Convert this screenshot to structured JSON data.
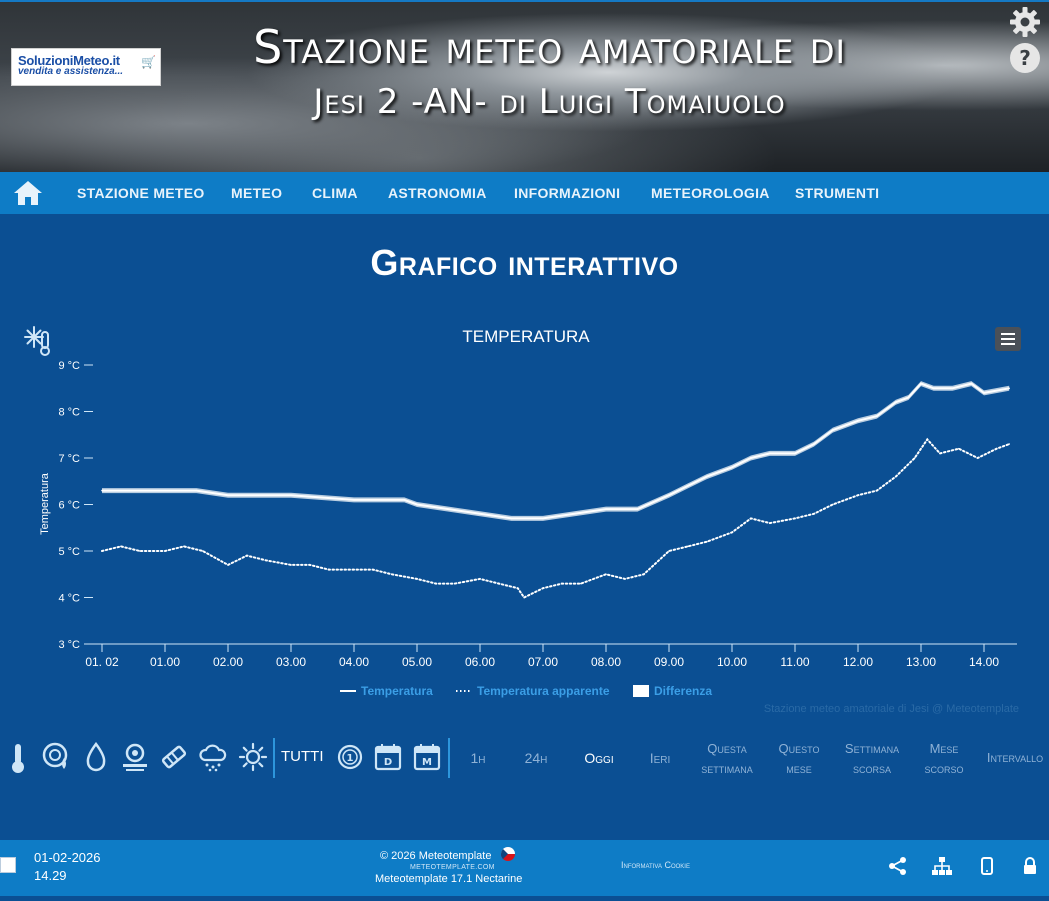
{
  "header": {
    "logo": {
      "brand": "SoluzioniMeteo.it",
      "tagline": "vendita e assistenza..."
    },
    "title_line1": "Stazione meteo amatoriale di",
    "title_line2": "Jesi 2 -AN- di Luigi Tomaiuolo",
    "icons": [
      "gear-icon",
      "help-icon"
    ]
  },
  "nav": {
    "home_icon": "home-icon",
    "items": [
      "STAZIONE METEO",
      "METEO",
      "CLIMA",
      "ASTRONOMIA",
      "INFORMAZIONI",
      "METEOROLOGIA",
      "STRUMENTI"
    ]
  },
  "page": {
    "title": "Grafico interattivo"
  },
  "chart_data": {
    "type": "line",
    "title": "TEMPERATURA",
    "ylabel": "Temperatura",
    "y_unit": "°C",
    "ylim": [
      3,
      9
    ],
    "y_ticks": [
      "3 °C",
      "4 °C",
      "5 °C",
      "6 °C",
      "7 °C",
      "8 °C",
      "9 °C"
    ],
    "x_ticks": [
      "01. 02",
      "01.00",
      "02.00",
      "03.00",
      "04.00",
      "05.00",
      "06.00",
      "07.00",
      "08.00",
      "09.00",
      "10.00",
      "11.00",
      "12.00",
      "13.00",
      "14.00"
    ],
    "grid": false,
    "legend_position": "bottom",
    "credits": "Stazione meteo amatoriale di Jesi @ Meteotemplate",
    "series": [
      {
        "name": "Temperatura",
        "style": "solid",
        "color": "#ffffff",
        "x": [
          0,
          1,
          1.5,
          2,
          3,
          4,
          4.8,
          5,
          5.5,
          6,
          6.5,
          7,
          7.5,
          8,
          8.5,
          9,
          9.3,
          9.6,
          10,
          10.3,
          10.6,
          11,
          11.3,
          11.6,
          12,
          12.3,
          12.6,
          12.8,
          13.0,
          13.2,
          13.5,
          13.8,
          14.0,
          14.4
        ],
        "values": [
          6.3,
          6.3,
          6.3,
          6.2,
          6.2,
          6.1,
          6.1,
          6.0,
          5.9,
          5.8,
          5.7,
          5.7,
          5.8,
          5.9,
          5.9,
          6.2,
          6.4,
          6.6,
          6.8,
          7.0,
          7.1,
          7.1,
          7.3,
          7.6,
          7.8,
          7.9,
          8.2,
          8.3,
          8.6,
          8.5,
          8.5,
          8.6,
          8.4,
          8.5
        ]
      },
      {
        "name": "Temperatura apparente",
        "style": "dotted",
        "color": "#ffffff",
        "x": [
          0,
          0.3,
          0.6,
          1,
          1.3,
          1.6,
          2,
          2.3,
          2.6,
          3,
          3.3,
          3.6,
          4,
          4.3,
          4.6,
          5,
          5.3,
          5.6,
          6,
          6.3,
          6.6,
          6.7,
          7,
          7.3,
          7.6,
          8,
          8.3,
          8.6,
          9,
          9.3,
          9.6,
          10,
          10.3,
          10.6,
          11,
          11.3,
          11.6,
          12,
          12.3,
          12.6,
          12.9,
          13.1,
          13.3,
          13.6,
          13.9,
          14.2,
          14.4
        ],
        "values": [
          5.0,
          5.1,
          5.0,
          5.0,
          5.1,
          5.0,
          4.7,
          4.9,
          4.8,
          4.7,
          4.7,
          4.6,
          4.6,
          4.6,
          4.5,
          4.4,
          4.3,
          4.3,
          4.4,
          4.3,
          4.2,
          4.0,
          4.2,
          4.3,
          4.3,
          4.5,
          4.4,
          4.5,
          5.0,
          5.1,
          5.2,
          5.4,
          5.7,
          5.6,
          5.7,
          5.8,
          6.0,
          6.2,
          6.3,
          6.6,
          7.0,
          7.4,
          7.1,
          7.2,
          7.0,
          7.2,
          7.3
        ]
      }
    ],
    "legend": [
      {
        "name": "Temperatura",
        "style": "solid"
      },
      {
        "name": "Temperatura apparente",
        "style": "dotted"
      },
      {
        "name": "Differenza",
        "style": "fill"
      }
    ]
  },
  "toolbar": {
    "icons": [
      "thermometer-icon",
      "humidity-gauge-icon",
      "drop-icon",
      "pressure-icon",
      "wind-icon",
      "rain-cloud-icon",
      "sun-icon"
    ],
    "tutti": "TUTTI",
    "period_icons": [
      "clock-icon",
      "calendar-day-icon",
      "calendar-month-icon"
    ],
    "ranges": [
      {
        "line1": "1h",
        "line2": ""
      },
      {
        "line1": "24h",
        "line2": ""
      },
      {
        "line1": "Oggi",
        "line2": "",
        "active": true
      },
      {
        "line1": "Ieri",
        "line2": ""
      },
      {
        "line1": "Questa",
        "line2": "settimana"
      },
      {
        "line1": "Questo",
        "line2": "mese"
      },
      {
        "line1": "Settimana",
        "line2": "scorsa"
      },
      {
        "line1": "Mese",
        "line2": "scorso"
      },
      {
        "line1": "Intervallo",
        "line2": ""
      }
    ]
  },
  "footer": {
    "date": "01-02-2026",
    "time": "14.29",
    "copyright": "© 2026  Meteotemplate",
    "site": "METEOTEMPLATE.COM",
    "version": "Meteotemplate 17.1 Nectarine",
    "cookie": "Informativa Cookie",
    "icons": [
      "share-icon",
      "sitemap-icon",
      "mobile-icon",
      "lock-icon"
    ]
  }
}
